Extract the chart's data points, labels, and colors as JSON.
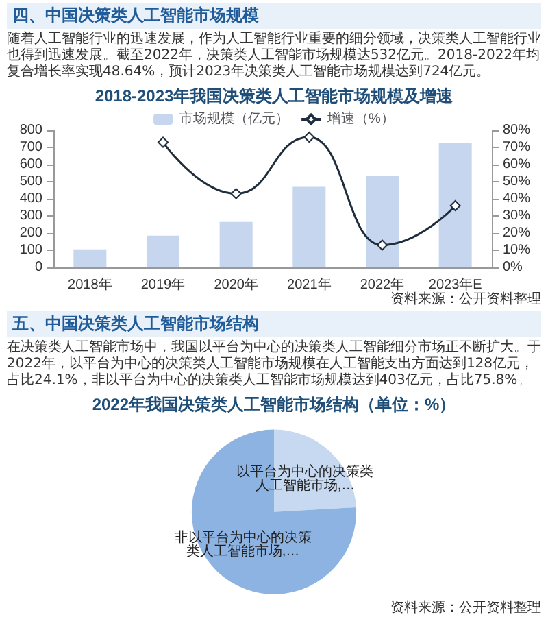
{
  "chart_data": [
    {
      "type": "bar",
      "title": "2018-2023年我国决策类人工智能市场规模及增速",
      "annotations": [
        "四、中国决策类人工智能市场规模",
        "随着人工智能行业的迅速发展，作为人工智能行业重要的细分领域，决策类人工智能行业也得到迅速发展。截至2022年，决策类人工智能市场规模达532亿元。2018-2022年均复合增长率实现48.64%，预计2023年决策类人工智能市场规模达到724亿元。",
        "资料来源：公开资料整理"
      ],
      "categories": [
        "2018年",
        "2019年",
        "2020年",
        "2021年",
        "2022年",
        "2023年E"
      ],
      "series": [
        {
          "name": "市场规模（亿元）",
          "type": "bar",
          "color": "#c5d6ee",
          "values": [
            105,
            185,
            265,
            470,
            532,
            724
          ]
        },
        {
          "name": "增速（%）",
          "type": "line",
          "axis": "y2",
          "color": "#1f2d3d",
          "marker": "diamond",
          "values": [
            null,
            73,
            43,
            76,
            13,
            36
          ]
        }
      ],
      "ylim": [
        0,
        800
      ],
      "yticks": [
        0,
        100,
        200,
        300,
        400,
        500,
        600,
        700,
        800
      ],
      "y2lim": [
        0,
        80
      ],
      "y2ticks": [
        {
          "value": 0,
          "label": "0%"
        },
        {
          "value": 10,
          "label": "10%"
        },
        {
          "value": 20,
          "label": "20%"
        },
        {
          "value": 30,
          "label": "30%"
        },
        {
          "value": 40,
          "label": "40%"
        },
        {
          "value": 50,
          "label": "50%"
        },
        {
          "value": 60,
          "label": "60%"
        },
        {
          "value": 70,
          "label": "70%"
        },
        {
          "value": 80,
          "label": "80%"
        }
      ],
      "legend": "top",
      "grid": false
    },
    {
      "type": "pie",
      "title": "2022年我国决策类人工智能市场结构（单位：%）",
      "annotations": [
        "五、中国决策类人工智能市场结构",
        "在决策类人工智能市场中，我国以平台为中心的决策类人工智能细分市场正不断扩大。于2022年，以平台为中心的决策类人工智能市场规模在人工智能支出方面达到128亿元，占比24.1%，非以平台为中心的决策类人工智能市场规模达到403亿元，占比75.8%。",
        "资料来源：公开资料整理"
      ],
      "categories": [
        "以平台为中心的决策类人工智能市场,…",
        "非以平台为中心的决策类人工智能市场,…"
      ],
      "values": [
        24.1,
        75.8
      ],
      "colors": [
        "#c6d9f0",
        "#8db3e2"
      ],
      "legend": false
    }
  ]
}
